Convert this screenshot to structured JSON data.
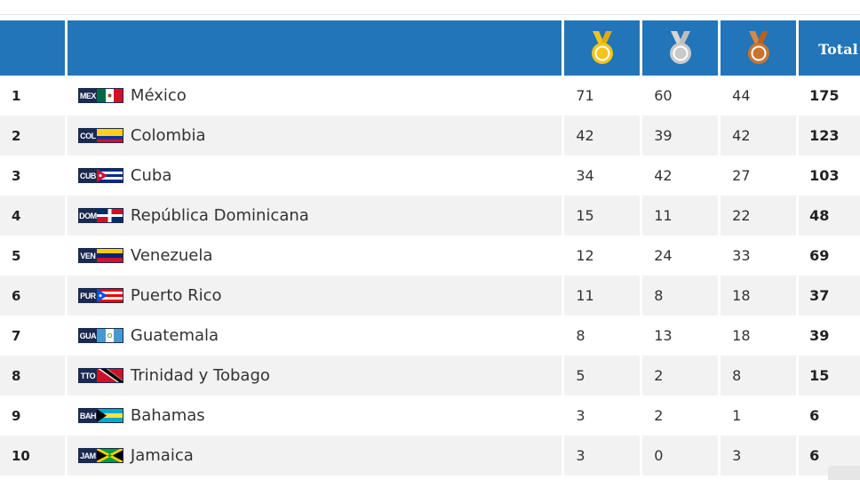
{
  "header": {
    "total_label": "Total",
    "medal_icons": [
      "gold-medal-icon",
      "silver-medal-icon",
      "bronze-medal-icon"
    ],
    "colors": {
      "header_bg": "#2175b8",
      "gold": "#f3c419",
      "silver": "#c9c9c9",
      "bronze": "#c8742e",
      "alt_row": "#f2f2f2"
    }
  },
  "rows": [
    {
      "rank": "1",
      "code": "MEX",
      "country": "México",
      "gold": "71",
      "silver": "60",
      "bronze": "44",
      "total": "175"
    },
    {
      "rank": "2",
      "code": "COL",
      "country": "Colombia",
      "gold": "42",
      "silver": "39",
      "bronze": "42",
      "total": "123"
    },
    {
      "rank": "3",
      "code": "CUB",
      "country": "Cuba",
      "gold": "34",
      "silver": "42",
      "bronze": "27",
      "total": "103"
    },
    {
      "rank": "4",
      "code": "DOM",
      "country": "República Dominicana",
      "gold": "15",
      "silver": "11",
      "bronze": "22",
      "total": "48"
    },
    {
      "rank": "5",
      "code": "VEN",
      "country": "Venezuela",
      "gold": "12",
      "silver": "24",
      "bronze": "33",
      "total": "69"
    },
    {
      "rank": "6",
      "code": "PUR",
      "country": "Puerto Rico",
      "gold": "11",
      "silver": "8",
      "bronze": "18",
      "total": "37"
    },
    {
      "rank": "7",
      "code": "GUA",
      "country": "Guatemala",
      "gold": "8",
      "silver": "13",
      "bronze": "18",
      "total": "39"
    },
    {
      "rank": "8",
      "code": "TTO",
      "country": "Trinidad y Tobago",
      "gold": "5",
      "silver": "2",
      "bronze": "8",
      "total": "15"
    },
    {
      "rank": "9",
      "code": "BAH",
      "country": "Bahamas",
      "gold": "3",
      "silver": "2",
      "bronze": "1",
      "total": "6"
    },
    {
      "rank": "10",
      "code": "JAM",
      "country": "Jamaica",
      "gold": "3",
      "silver": "0",
      "bronze": "3",
      "total": "6"
    }
  ]
}
